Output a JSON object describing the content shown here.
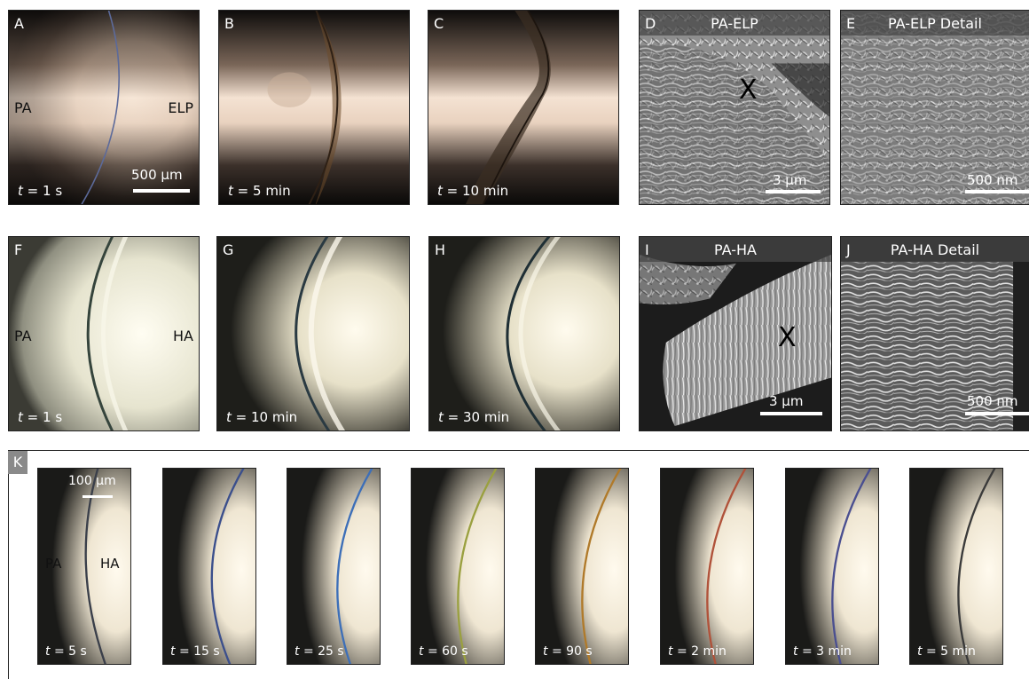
{
  "panels": {
    "a": {
      "letter": "A",
      "time_prefix": "t",
      "time_value": "= 1 s",
      "left_label": "PA",
      "right_label": "ELP",
      "scale": "500 µm"
    },
    "b": {
      "letter": "B",
      "time_prefix": "t",
      "time_value": "= 5 min"
    },
    "c": {
      "letter": "C",
      "time_prefix": "t",
      "time_value": "= 10 min"
    },
    "d": {
      "letter": "D",
      "title": "PA-ELP",
      "mark": "X",
      "scale": "3 µm"
    },
    "e": {
      "letter": "E",
      "title": "PA-ELP Detail",
      "scale": "500 nm"
    },
    "f": {
      "letter": "F",
      "time_prefix": "t",
      "time_value": "= 1 s",
      "left_label": "PA",
      "right_label": "HA"
    },
    "g": {
      "letter": "G",
      "time_prefix": "t",
      "time_value": "= 10 min"
    },
    "h": {
      "letter": "H",
      "time_prefix": "t",
      "time_value": "= 30 min"
    },
    "i": {
      "letter": "I",
      "title": "PA-HA",
      "mark": "X",
      "scale": "3 µm"
    },
    "j": {
      "letter": "J",
      "title": "PA-HA Detail",
      "scale": "500 nm"
    }
  },
  "k": {
    "letter": "K",
    "scale": "100 µm",
    "left_label": "PA",
    "right_label": "HA",
    "frames": [
      {
        "time_prefix": "t",
        "time_value": "= 5 s",
        "line_color": "#3a3f4a"
      },
      {
        "time_prefix": "t",
        "time_value": "= 15 s",
        "line_color": "#3b4f8c"
      },
      {
        "time_prefix": "t",
        "time_value": "= 25 s",
        "line_color": "#3d6fb8"
      },
      {
        "time_prefix": "t",
        "time_value": "= 60 s",
        "line_color": "#9aa040"
      },
      {
        "time_prefix": "t",
        "time_value": "= 90 s",
        "line_color": "#b07a2a"
      },
      {
        "time_prefix": "t",
        "time_value": "= 2 min",
        "line_color": "#b0523a"
      },
      {
        "time_prefix": "t",
        "time_value": "= 3 min",
        "line_color": "#4a4f90"
      },
      {
        "time_prefix": "t",
        "time_value": "= 5 min",
        "line_color": "#3a3a3a"
      }
    ]
  }
}
